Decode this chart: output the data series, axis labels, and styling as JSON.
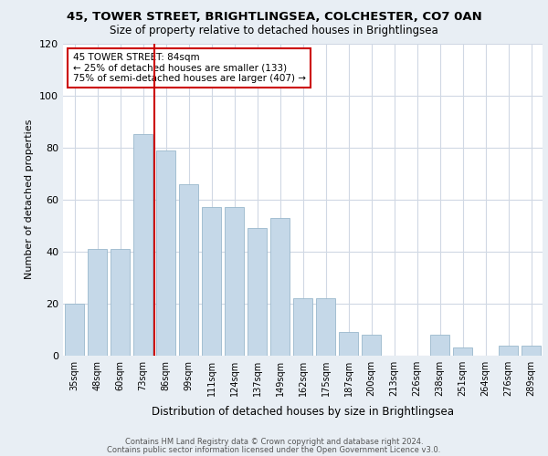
{
  "title1": "45, TOWER STREET, BRIGHTLINGSEA, COLCHESTER, CO7 0AN",
  "title2": "Size of property relative to detached houses in Brightlingsea",
  "xlabel": "Distribution of detached houses by size in Brightlingsea",
  "ylabel": "Number of detached properties",
  "categories": [
    "35sqm",
    "48sqm",
    "60sqm",
    "73sqm",
    "86sqm",
    "99sqm",
    "111sqm",
    "124sqm",
    "137sqm",
    "149sqm",
    "162sqm",
    "175sqm",
    "187sqm",
    "200sqm",
    "213sqm",
    "226sqm",
    "238sqm",
    "251sqm",
    "264sqm",
    "276sqm",
    "289sqm"
  ],
  "values": [
    20,
    41,
    41,
    85,
    79,
    66,
    57,
    57,
    49,
    53,
    22,
    22,
    9,
    8,
    0,
    0,
    8,
    3,
    0,
    4,
    4
  ],
  "bar_color": "#c5d8e8",
  "bar_edge_color": "#9ab8cc",
  "vline_x": 3.5,
  "vline_color": "#cc0000",
  "annotation_text": "45 TOWER STREET: 84sqm\n← 25% of detached houses are smaller (133)\n75% of semi-detached houses are larger (407) →",
  "annotation_box_color": "#ffffff",
  "annotation_box_edge": "#cc0000",
  "ylim": [
    0,
    120
  ],
  "yticks": [
    0,
    20,
    40,
    60,
    80,
    100,
    120
  ],
  "footer1": "Contains HM Land Registry data © Crown copyright and database right 2024.",
  "footer2": "Contains public sector information licensed under the Open Government Licence v3.0.",
  "bg_color": "#e8eef4",
  "plot_bg_color": "#ffffff",
  "grid_color": "#d0d8e4"
}
